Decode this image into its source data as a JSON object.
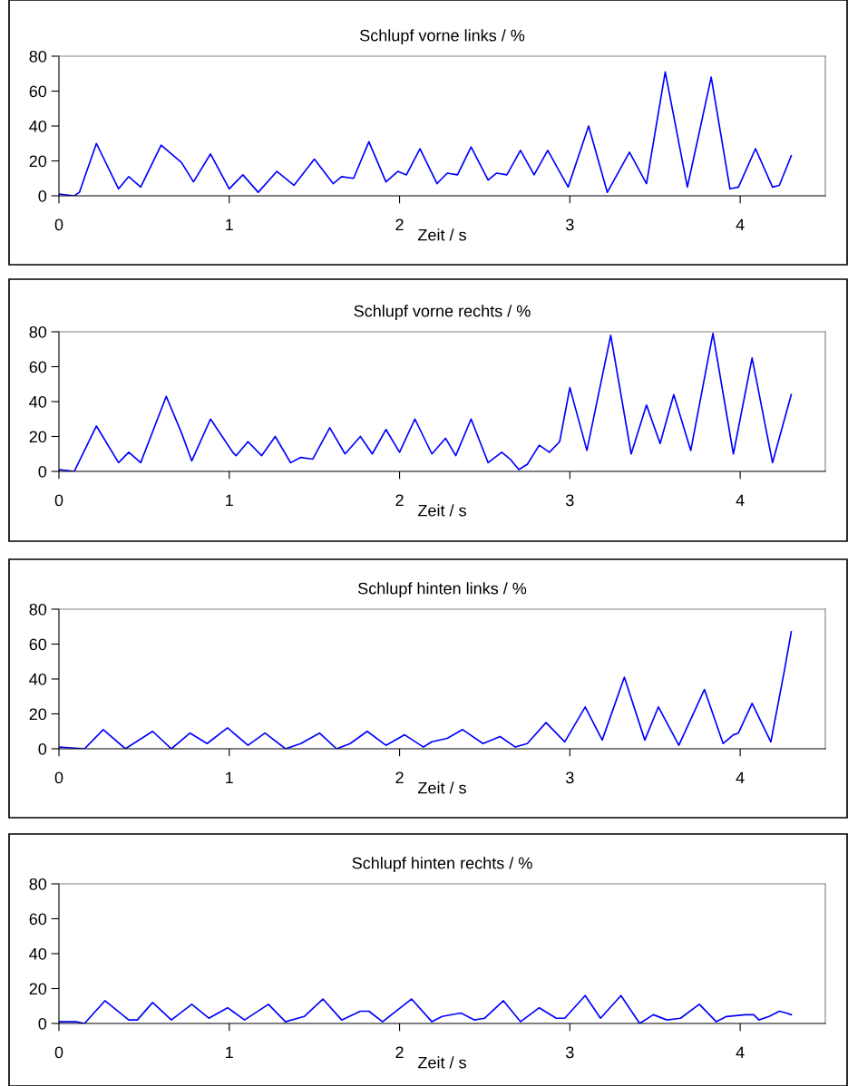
{
  "chart_data": [
    {
      "type": "line",
      "title": "Schlupf vorne links / %",
      "xlabel": "Zeit / s",
      "xlim": [
        0,
        4.5
      ],
      "ylim": [
        0,
        80
      ],
      "xticks": [
        0,
        1,
        2,
        3,
        4
      ],
      "yticks": [
        0,
        20,
        40,
        60,
        80
      ],
      "series": [
        {
          "color": "#0000ff",
          "x": [
            0,
            0.09,
            0.12,
            0.22,
            0.35,
            0.41,
            0.48,
            0.6,
            0.72,
            0.79,
            0.89,
            1.0,
            1.08,
            1.17,
            1.28,
            1.38,
            1.5,
            1.61,
            1.66,
            1.73,
            1.82,
            1.92,
            1.99,
            2.04,
            2.12,
            2.22,
            2.28,
            2.34,
            2.42,
            2.52,
            2.57,
            2.63,
            2.71,
            2.79,
            2.87,
            2.99,
            3.11,
            3.22,
            3.35,
            3.45,
            3.56,
            3.69,
            3.83,
            3.94,
            3.99,
            4.09,
            4.19,
            4.23,
            4.3
          ],
          "values": [
            1,
            0,
            2,
            30,
            4,
            11,
            5,
            29,
            19,
            8,
            24,
            4,
            12,
            2,
            14,
            6,
            21,
            7,
            11,
            10,
            31,
            8,
            14,
            12,
            27,
            7,
            13,
            12,
            28,
            9,
            13,
            12,
            26,
            12,
            26,
            5,
            40,
            2,
            25,
            7,
            71,
            5,
            68,
            4,
            5,
            27,
            5,
            6,
            23
          ]
        }
      ]
    },
    {
      "type": "line",
      "title": "Schlupf vorne rechts / %",
      "xlabel": "Zeit / s",
      "xlim": [
        0,
        4.5
      ],
      "ylim": [
        0,
        80
      ],
      "xticks": [
        0,
        1,
        2,
        3,
        4
      ],
      "yticks": [
        0,
        20,
        40,
        60,
        80
      ],
      "series": [
        {
          "color": "#0000ff",
          "x": [
            0,
            0.09,
            0.22,
            0.35,
            0.41,
            0.48,
            0.63,
            0.72,
            0.78,
            0.89,
            1.02,
            1.04,
            1.11,
            1.19,
            1.27,
            1.36,
            1.42,
            1.49,
            1.59,
            1.68,
            1.77,
            1.84,
            1.92,
            2.0,
            2.09,
            2.19,
            2.27,
            2.33,
            2.42,
            2.52,
            2.6,
            2.65,
            2.7,
            2.75,
            2.82,
            2.88,
            2.94,
            3.0,
            3.1,
            3.24,
            3.36,
            3.45,
            3.53,
            3.61,
            3.71,
            3.84,
            3.96,
            4.07,
            4.19,
            4.3
          ],
          "values": [
            1,
            0,
            26,
            5,
            11,
            5,
            43,
            22,
            6,
            30,
            11,
            9,
            17,
            9,
            20,
            5,
            8,
            7,
            25,
            10,
            20,
            10,
            24,
            11,
            30,
            10,
            19,
            9,
            30,
            5,
            11,
            7,
            1,
            4,
            15,
            11,
            17,
            48,
            12,
            78,
            10,
            38,
            16,
            44,
            12,
            79,
            10,
            65,
            5,
            44
          ]
        }
      ]
    },
    {
      "type": "line",
      "title": "Schlupf hinten links / %",
      "xlabel": "Zeit / s",
      "xlim": [
        0,
        4.5
      ],
      "ylim": [
        0,
        80
      ],
      "xticks": [
        0,
        1,
        2,
        3,
        4
      ],
      "yticks": [
        0,
        20,
        40,
        60,
        80
      ],
      "series": [
        {
          "color": "#0000ff",
          "x": [
            0,
            0.15,
            0.26,
            0.39,
            0.55,
            0.66,
            0.77,
            0.87,
            0.99,
            1.11,
            1.21,
            1.33,
            1.42,
            1.53,
            1.63,
            1.71,
            1.81,
            1.92,
            2.03,
            2.14,
            2.19,
            2.28,
            2.37,
            2.49,
            2.59,
            2.68,
            2.75,
            2.86,
            2.97,
            3.09,
            3.19,
            3.32,
            3.44,
            3.52,
            3.64,
            3.79,
            3.9,
            3.96,
            3.99,
            4.07,
            4.18,
            4.26,
            4.3
          ],
          "values": [
            1,
            0,
            11,
            0,
            10,
            0,
            9,
            3,
            12,
            2,
            9,
            0,
            3,
            9,
            0,
            3,
            10,
            2,
            8,
            1,
            4,
            6,
            11,
            3,
            7,
            1,
            3,
            15,
            4,
            24,
            5,
            41,
            5,
            24,
            2,
            34,
            3,
            8,
            9,
            26,
            4,
            45,
            67
          ]
        }
      ]
    },
    {
      "type": "line",
      "title": "Schlupf hinten rechts / %",
      "xlabel": "Zeit / s",
      "xlim": [
        0,
        4.5
      ],
      "ylim": [
        0,
        80
      ],
      "xticks": [
        0,
        1,
        2,
        3,
        4
      ],
      "yticks": [
        0,
        20,
        40,
        60,
        80
      ],
      "series": [
        {
          "color": "#0000ff",
          "x": [
            0,
            0.1,
            0.15,
            0.27,
            0.41,
            0.46,
            0.55,
            0.66,
            0.78,
            0.88,
            0.99,
            1.09,
            1.23,
            1.33,
            1.44,
            1.55,
            1.66,
            1.77,
            1.82,
            1.9,
            2.07,
            2.19,
            2.25,
            2.36,
            2.44,
            2.5,
            2.61,
            2.71,
            2.82,
            2.92,
            2.97,
            3.09,
            3.18,
            3.3,
            3.41,
            3.49,
            3.57,
            3.65,
            3.76,
            3.86,
            3.92,
            4.03,
            4.08,
            4.11,
            4.17,
            4.23,
            4.27,
            4.3
          ],
          "values": [
            1,
            1,
            0,
            13,
            2,
            2,
            12,
            2,
            11,
            3,
            9,
            2,
            11,
            1,
            4,
            14,
            2,
            7,
            7,
            1,
            14,
            1,
            4,
            6,
            2,
            3,
            13,
            1,
            9,
            3,
            3,
            16,
            3,
            16,
            0,
            5,
            2,
            3,
            11,
            1,
            4,
            5,
            5,
            2,
            4,
            7,
            6,
            5
          ]
        }
      ]
    }
  ]
}
